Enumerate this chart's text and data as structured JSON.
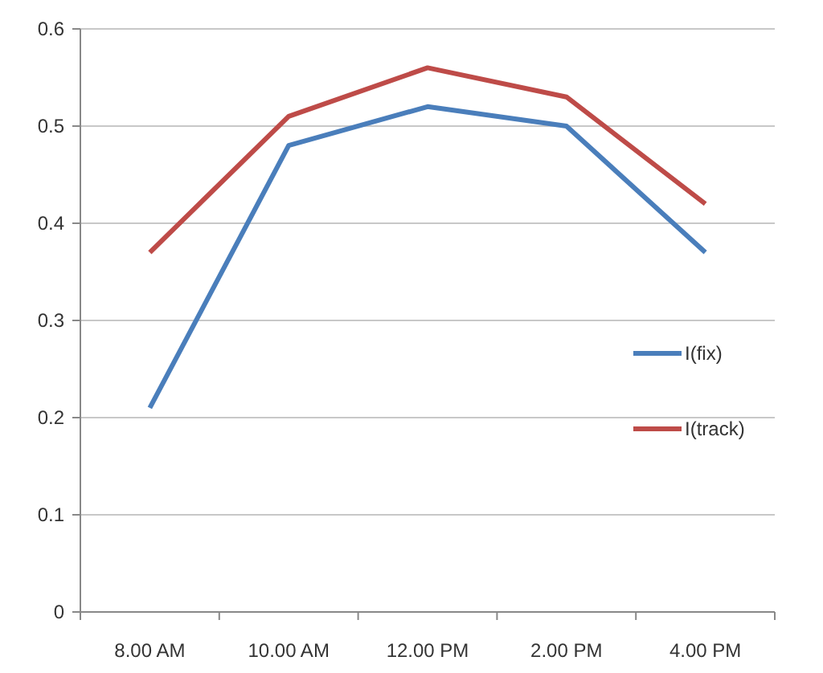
{
  "chart_data": {
    "type": "line",
    "categories": [
      "8.00 AM",
      "10.00 AM",
      "12.00 PM",
      "2.00 PM",
      "4.00 PM"
    ],
    "series": [
      {
        "name": "I(fix)",
        "color": "#4a7ebb",
        "values": [
          0.21,
          0.48,
          0.52,
          0.5,
          0.37
        ]
      },
      {
        "name": "I(track)",
        "color": "#be4b48",
        "values": [
          0.37,
          0.51,
          0.56,
          0.53,
          0.42
        ]
      }
    ],
    "ylim": [
      0,
      0.6
    ],
    "yticks": [
      0,
      0.1,
      0.2,
      0.3,
      0.4,
      0.5,
      0.6
    ],
    "grid": "y",
    "legend": "right",
    "marker": "none",
    "line_style": "solid"
  }
}
